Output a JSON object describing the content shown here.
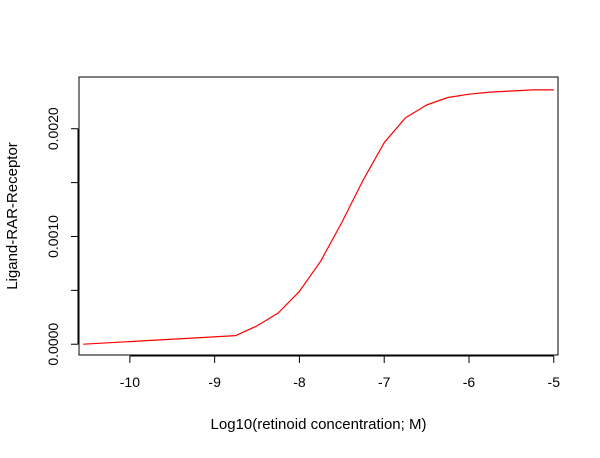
{
  "chart_data": {
    "type": "line",
    "title": "",
    "xlabel": "Log10(retinoid concentration; M)",
    "ylabel": "Ligand-RAR-Receptor",
    "xlim": [
      -10.6,
      -4.95
    ],
    "ylim": [
      -0.0001,
      0.00248
    ],
    "x_ticks": [
      -10,
      -9,
      -8,
      -7,
      -6,
      -5
    ],
    "x_tick_labels": [
      "-10",
      "-9",
      "-8",
      "-7",
      "-6",
      "-5"
    ],
    "y_ticks": [
      0.0,
      0.0005,
      0.001,
      0.0015,
      0.002
    ],
    "y_tick_labels": [
      "0.0000",
      "",
      "0.0010",
      "",
      "0.0020"
    ],
    "grid": false,
    "legend": "none",
    "series": [
      {
        "color": "#ff0000",
        "x": [
          -10.55,
          -8.75,
          -8.5,
          -8.25,
          -8.0,
          -7.75,
          -7.5,
          -7.25,
          -7.0,
          -6.75,
          -6.5,
          -6.25,
          -6.0,
          -5.75,
          -5.5,
          -5.25,
          -5.0
        ],
        "y": [
          0.0,
          8e-05,
          0.00017,
          0.00029,
          0.00049,
          0.00077,
          0.00113,
          0.00152,
          0.00187,
          0.0021,
          0.00222,
          0.00229,
          0.00232,
          0.00234,
          0.00235,
          0.00236,
          0.00236
        ]
      }
    ]
  }
}
